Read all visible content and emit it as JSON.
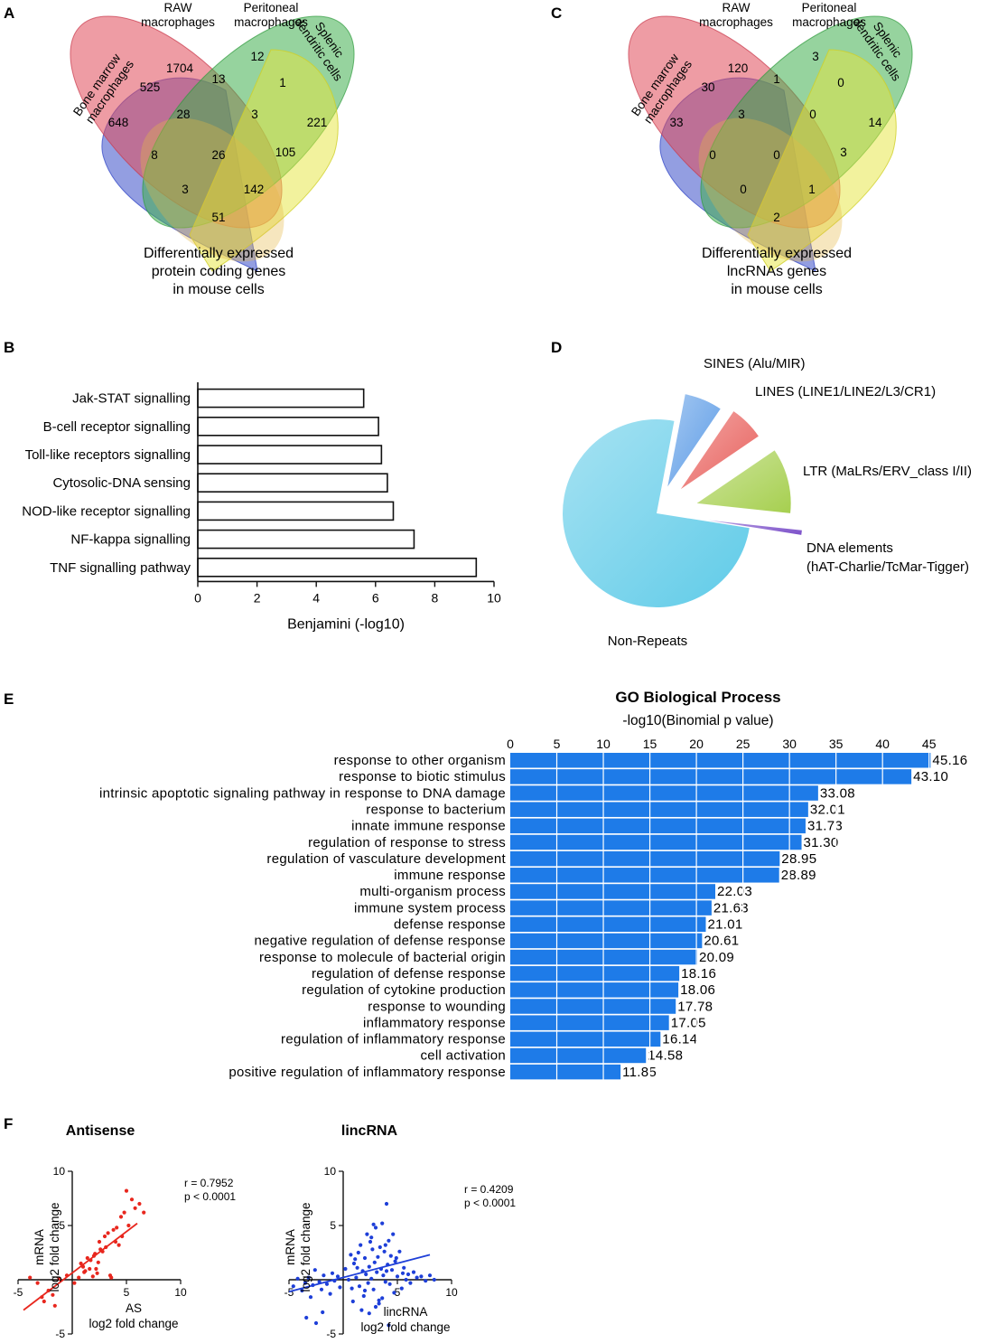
{
  "panels": {
    "A": "A",
    "B": "B",
    "C": "C",
    "D": "D",
    "E": "E",
    "F": "F"
  },
  "venn_labels": {
    "bone_marrow": [
      "Bone marrow",
      "macrophages"
    ],
    "raw": [
      "RAW",
      "macrophages"
    ],
    "peritoneal": [
      "Peritoneal",
      "macrophages"
    ],
    "splenic": [
      "Splenic",
      "dendritic cells"
    ]
  },
  "chart_data": [
    {
      "panel": "A",
      "type": "venn",
      "caption": [
        "Differentially expressed",
        "protein coding genes",
        "in mouse cells"
      ],
      "sets": [
        "Bone marrow macrophages",
        "RAW macrophages",
        "Peritoneal macrophages",
        "Splenic dendritic cells"
      ],
      "regions": {
        "bone_marrow_only": "648",
        "raw_only": "1704",
        "peritoneal_only": "12",
        "splenic_only": "221",
        "bm_raw": "525",
        "raw_peritoneal": "13",
        "peritoneal_splenic": "1",
        "bm_splenic": "51",
        "bm_raw_peritoneal": "28",
        "raw_peritoneal_splenic": "3",
        "bm_peritoneal": "8",
        "raw_splenic": "105",
        "all_four": "26",
        "bm_peritoneal_splenic": "3",
        "bm_raw_splenic": "142"
      }
    },
    {
      "panel": "C",
      "type": "venn",
      "caption": [
        "Differentially expressed",
        "lncRNAs genes",
        "in mouse cells"
      ],
      "sets": [
        "Bone marrow macrophages",
        "RAW macrophages",
        "Peritoneal macrophages",
        "Splenic dendritic cells"
      ],
      "regions": {
        "bone_marrow_only": "33",
        "raw_only": "120",
        "peritoneal_only": "3",
        "splenic_only": "14",
        "bm_raw": "30",
        "raw_peritoneal": "1",
        "peritoneal_splenic": "0",
        "bm_splenic": "2",
        "bm_raw_peritoneal": "3",
        "raw_peritoneal_splenic": "0",
        "bm_peritoneal": "0",
        "raw_splenic": "3",
        "all_four": "0",
        "bm_peritoneal_splenic": "0",
        "bm_raw_splenic": "1"
      }
    },
    {
      "panel": "B",
      "type": "bar",
      "orientation": "horizontal",
      "categories": [
        "Jak-STAT signalling",
        "B-cell receptor signalling",
        "Toll-like receptors signalling",
        "Cytosolic-DNA sensing",
        "NOD-like receptor signalling",
        "NF-kappa signalling",
        "TNF signalling pathway"
      ],
      "values": [
        5.6,
        6.1,
        6.2,
        6.4,
        6.6,
        7.3,
        9.4
      ],
      "xlabel": "Benjamini  (-log10)",
      "xlim": [
        0,
        10
      ],
      "xticks": [
        "0",
        "2",
        "4",
        "6",
        "8",
        "10"
      ]
    },
    {
      "panel": "D",
      "type": "pie",
      "exploded": true,
      "slices": [
        {
          "label": "Non-Repeats",
          "value": 75.5,
          "color": "#5fcbe8"
        },
        {
          "label": "SINES (Alu/MIR)",
          "value": 6.5,
          "color": "#5b9be6"
        },
        {
          "label": "LINES (LINE1/LINE2/L3/CR1)",
          "value": 6.0,
          "color": "#e8605c"
        },
        {
          "label": "LTR (MaLRs/ERV_class I/II)",
          "value": 11.2,
          "color": "#a6cf4f"
        },
        {
          "label": "DNA elements (hAT-Charlie/TcMar-Tigger)",
          "value": 0.8,
          "color": "#7b4fc9"
        }
      ],
      "dna_label_lines": [
        "DNA elements",
        "(hAT-Charlie/TcMar-Tigger)"
      ]
    },
    {
      "panel": "E",
      "type": "bar",
      "orientation": "horizontal",
      "title": "GO Biological Process",
      "xlabel": "-log10(Binomial p value)",
      "xlim": [
        0,
        46
      ],
      "xticks": [
        "0",
        "5",
        "10",
        "15",
        "20",
        "25",
        "30",
        "35",
        "40",
        "45"
      ],
      "color": "#1e7be8",
      "categories": [
        "response to other organism",
        "response to biotic stimulus",
        "intrinsic apoptotic signaling pathway in response to DNA damage",
        "response to bacterium",
        "innate immune response",
        "regulation of response to stress",
        "regulation of vasculature development",
        "immune response",
        "multi-organism process",
        "immune system process",
        "defense response",
        "negative regulation of defense response",
        "response to molecule of bacterial origin",
        "regulation of defense response",
        "regulation of cytokine production",
        "response to wounding",
        "inflammatory response",
        "regulation of inflammatory response",
        "cell activation",
        "positive regulation of inflammatory response"
      ],
      "values": [
        45.16,
        43.1,
        33.08,
        32.01,
        31.73,
        31.3,
        28.95,
        28.89,
        22.03,
        21.63,
        21.01,
        20.61,
        20.09,
        18.16,
        18.06,
        17.78,
        17.05,
        16.14,
        14.58,
        11.85
      ],
      "value_labels": [
        "45.16",
        "43.10",
        "33.08",
        "32.01",
        "31.73",
        "31.30",
        "28.95",
        "28.89",
        "22.03",
        "21.63",
        "21.01",
        "20.61",
        "20.09",
        "18.16",
        "18.06",
        "17.78",
        "17.05",
        "16.14",
        "14.58",
        "11.85"
      ]
    },
    {
      "panel": "F1",
      "type": "scatter",
      "title": "Antisense",
      "color": "#e8271e",
      "xlabel_lines": [
        "AS",
        "log2 fold change"
      ],
      "ylabel_lines": [
        "mRNA",
        "log2 fold change"
      ],
      "xlim": [
        -5,
        10
      ],
      "ylim": [
        -5,
        10
      ],
      "xticks": [
        "-5",
        "5",
        "10"
      ],
      "yticks": [
        "10",
        "5",
        "-5"
      ],
      "stats": [
        "r = 0.7952",
        "p < 0.0001"
      ],
      "regression": {
        "x": [
          -4.5,
          6.0
        ],
        "y": [
          -2.8,
          5.2
        ]
      },
      "x": [
        -3.9,
        -3.2,
        -2.8,
        -2.6,
        -2.2,
        -1.8,
        -1.2,
        -0.5,
        0.2,
        0.6,
        0.8,
        1.0,
        1.2,
        1.4,
        1.6,
        1.7,
        1.9,
        2.0,
        2.1,
        2.3,
        2.4,
        2.5,
        2.6,
        2.8,
        3.0,
        3.1,
        3.3,
        3.5,
        3.6,
        3.8,
        4.0,
        4.1,
        4.3,
        4.5,
        4.6,
        4.8,
        5.0,
        5.2,
        5.5,
        5.8,
        6.2,
        6.6,
        2.2,
        1.1,
        -1.6
      ],
      "y": [
        0.2,
        -0.3,
        -1.6,
        -2.0,
        -1.0,
        -1.4,
        0.1,
        0.4,
        -0.3,
        0.2,
        1.5,
        1.2,
        0.8,
        2.0,
        1.0,
        1.8,
        0.3,
        2.2,
        2.4,
        0.6,
        1.6,
        3.5,
        2.8,
        2.6,
        4.0,
        3.0,
        4.3,
        0.4,
        0.2,
        4.6,
        3.5,
        4.8,
        3.2,
        5.8,
        4.0,
        6.2,
        8.2,
        5.0,
        7.4,
        6.6,
        7.0,
        6.2,
        1.0,
        0.7,
        -2.4
      ]
    },
    {
      "panel": "F2",
      "type": "scatter",
      "title": "lincRNA",
      "color": "#1e3fd8",
      "xlabel_lines": [
        "lincRNA",
        "log2 fold change"
      ],
      "ylabel_lines": [
        "mRNA",
        "log2 fold change"
      ],
      "xlim": [
        -5,
        10
      ],
      "ylim": [
        -5,
        10
      ],
      "xticks": [
        "-5",
        "5",
        "10"
      ],
      "yticks": [
        "10",
        "5",
        "-5"
      ],
      "stats": [
        "r = 0.4209",
        "p < 0.0001"
      ],
      "regression": {
        "x": [
          -5.0,
          8.0
        ],
        "y": [
          -1.1,
          2.3
        ]
      },
      "x": [
        -4.6,
        -4.2,
        -3.8,
        -3.5,
        -3.2,
        -3.0,
        -2.8,
        -2.5,
        -2.2,
        -2.0,
        -1.8,
        -1.5,
        -1.2,
        -1.0,
        -0.8,
        -0.5,
        -0.3,
        0.2,
        0.5,
        0.8,
        1.0,
        1.2,
        1.4,
        1.5,
        1.6,
        1.8,
        1.9,
        2.0,
        2.1,
        2.2,
        2.3,
        2.4,
        2.5,
        2.6,
        2.7,
        2.8,
        2.9,
        3.0,
        3.1,
        3.2,
        3.3,
        3.4,
        3.5,
        3.6,
        3.7,
        3.8,
        3.9,
        4.0,
        4.1,
        4.2,
        4.3,
        4.4,
        4.5,
        4.6,
        4.7,
        4.8,
        5.0,
        5.2,
        5.4,
        5.6,
        5.8,
        6.0,
        6.2,
        6.5,
        6.8,
        7.2,
        7.6,
        8.0,
        8.4,
        1.7,
        2.4,
        3.0,
        3.6,
        4.2,
        1.1,
        0.7,
        2.8,
        3.9,
        -1.9,
        -3.4,
        -2.6,
        4.9,
        5.5,
        0.9,
        1.3,
        2.0,
        2.6,
        3.3,
        4.0
      ],
      "y": [
        -0.6,
        0.1,
        -1.0,
        -0.3,
        0.2,
        -1.6,
        -0.5,
        -4.0,
        -0.2,
        -0.9,
        0.4,
        -0.4,
        -1.3,
        0.6,
        -0.1,
        0.3,
        -0.7,
        1.0,
        0.0,
        -0.8,
        1.5,
        0.2,
        2.5,
        -0.6,
        3.2,
        0.8,
        -1.5,
        2.0,
        0.5,
        4.2,
        -0.3,
        1.2,
        3.5,
        0.1,
        2.8,
        -0.9,
        1.6,
        4.8,
        0.7,
        2.1,
        -2.2,
        3.0,
        1.0,
        5.2,
        0.4,
        2.6,
        -0.2,
        7.0,
        1.4,
        3.6,
        -0.4,
        2.2,
        0.9,
        4.2,
        -1.2,
        1.7,
        0.3,
        2.6,
        -0.8,
        1.1,
        0.0,
        0.5,
        -0.3,
        0.7,
        0.2,
        0.3,
        -0.1,
        0.4,
        0.0,
        -2.8,
        -3.1,
        -2.5,
        -1.7,
        -4.2,
        1.9,
        2.3,
        5.1,
        3.2,
        -3.0,
        -3.5,
        0.9,
        2.0,
        0.6,
        -2.0,
        1.1,
        -1.0,
        3.9,
        -1.9,
        0.8
      ]
    }
  ]
}
